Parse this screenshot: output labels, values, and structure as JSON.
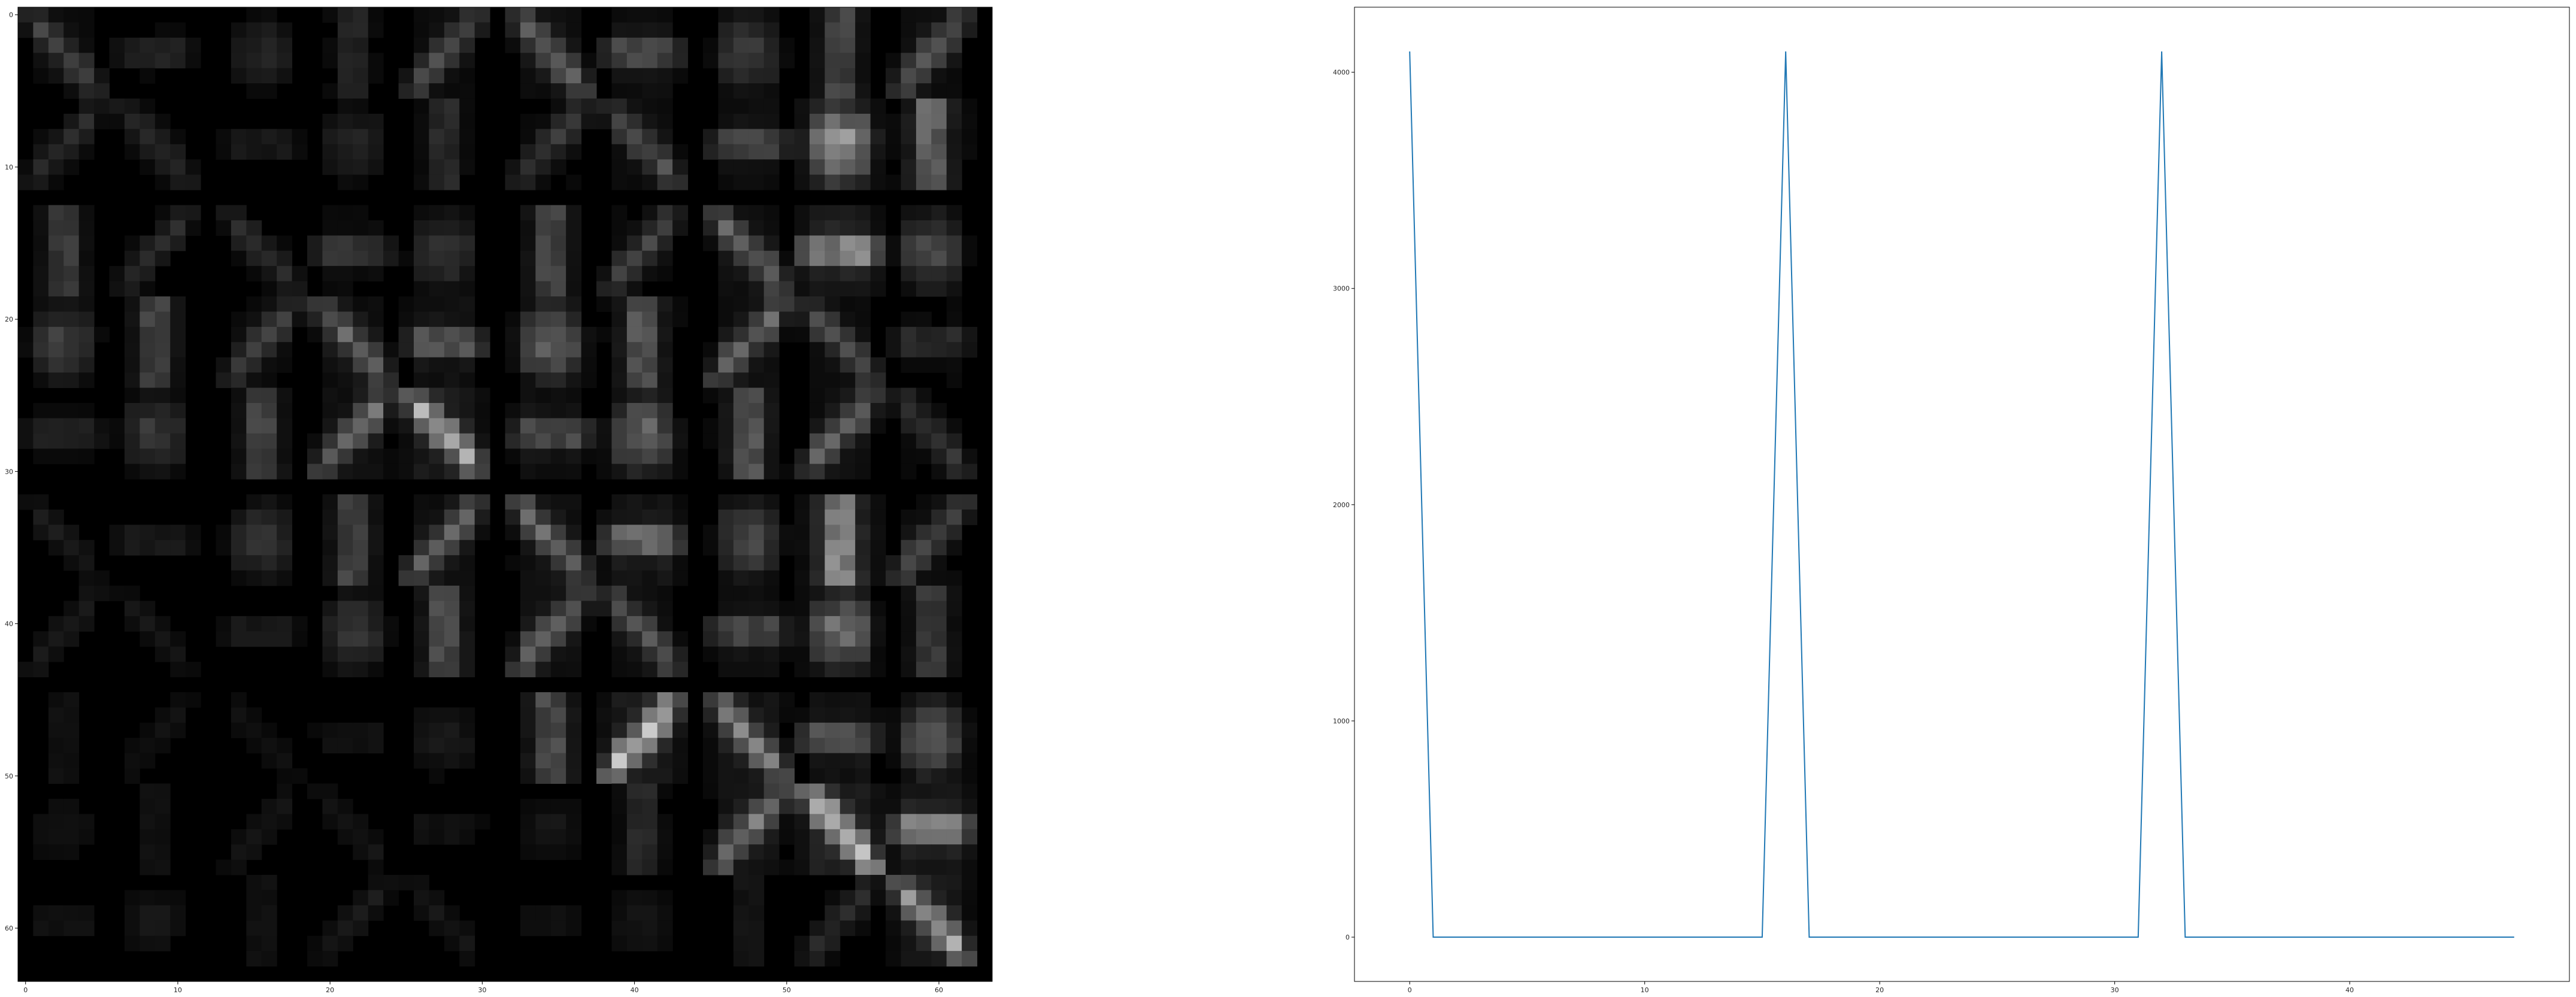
{
  "chart_data": [
    {
      "type": "heatmap",
      "colormap": "gray",
      "x_ticks": [
        "0",
        "10",
        "20",
        "30",
        "40",
        "50",
        "60"
      ],
      "y_ticks": [
        "0",
        "10",
        "20",
        "30",
        "40",
        "50",
        "60"
      ],
      "xlim": [
        -0.5,
        63.5
      ],
      "ylim": [
        63.5,
        -0.5
      ],
      "layout": {
        "rows": 10,
        "cols": 10,
        "cell_size": 6
      },
      "cells": [
        [
          0.3,
          0.2,
          0.2,
          0.22,
          0.35,
          0.45,
          0.42,
          0.35,
          0.4,
          0.4
        ],
        [
          0.2,
          0.2,
          0.15,
          0.2,
          0.25,
          0.25,
          0.35,
          0.4,
          0.85,
          0.6
        ],
        [
          0.35,
          0.2,
          0.2,
          0.3,
          0.3,
          0.4,
          0.3,
          0.45,
          0.8,
          0.4
        ],
        [
          0.35,
          0.4,
          0.3,
          0.45,
          0.5,
          0.55,
          0.5,
          0.45,
          0.35,
          0.25
        ],
        [
          0.2,
          0.3,
          0.4,
          0.5,
          0.75,
          0.45,
          0.55,
          0.5,
          0.45,
          0.25
        ],
        [
          0.12,
          0.15,
          0.3,
          0.4,
          0.45,
          0.5,
          0.6,
          0.4,
          0.8,
          0.35
        ],
        [
          0.12,
          0.1,
          0.15,
          0.3,
          0.45,
          0.45,
          0.4,
          0.4,
          0.6,
          0.35
        ],
        [
          0.1,
          0.08,
          0.08,
          0.1,
          0.15,
          0.45,
          0.8,
          0.6,
          0.5,
          0.5
        ],
        [
          0.1,
          0.1,
          0.1,
          0.1,
          0.1,
          0.12,
          0.25,
          0.55,
          0.95,
          0.75
        ],
        [
          0.1,
          0.12,
          0.1,
          0.12,
          0.1,
          0.1,
          0.12,
          0.12,
          0.2,
          0.7
        ]
      ]
    },
    {
      "type": "line",
      "color": "#1f77b4",
      "x": [
        0,
        1,
        2,
        3,
        4,
        5,
        6,
        7,
        8,
        9,
        10,
        11,
        12,
        13,
        14,
        15,
        16,
        17,
        18,
        19,
        20,
        21,
        22,
        23,
        24,
        25,
        26,
        27,
        28,
        29,
        30,
        31,
        32,
        33,
        34,
        35,
        36,
        37,
        38,
        39,
        40,
        41,
        42,
        43,
        44,
        45,
        46,
        47
      ],
      "series": [
        {
          "values": [
            4096,
            0,
            0,
            0,
            0,
            0,
            0,
            0,
            0,
            0,
            0,
            0,
            0,
            0,
            0,
            0,
            4096,
            0,
            0,
            0,
            0,
            0,
            0,
            0,
            0,
            0,
            0,
            0,
            0,
            0,
            0,
            0,
            4096,
            0,
            0,
            0,
            0,
            0,
            0,
            0,
            0,
            0,
            0,
            0,
            0,
            0,
            0,
            0
          ]
        }
      ],
      "x_ticks": [
        "0",
        "10",
        "20",
        "30",
        "40"
      ],
      "y_ticks": [
        "0",
        "1000",
        "2000",
        "3000",
        "4000"
      ],
      "xlim": [
        -2.35,
        49.35
      ],
      "ylim": [
        -204.8,
        4300.8
      ]
    }
  ]
}
